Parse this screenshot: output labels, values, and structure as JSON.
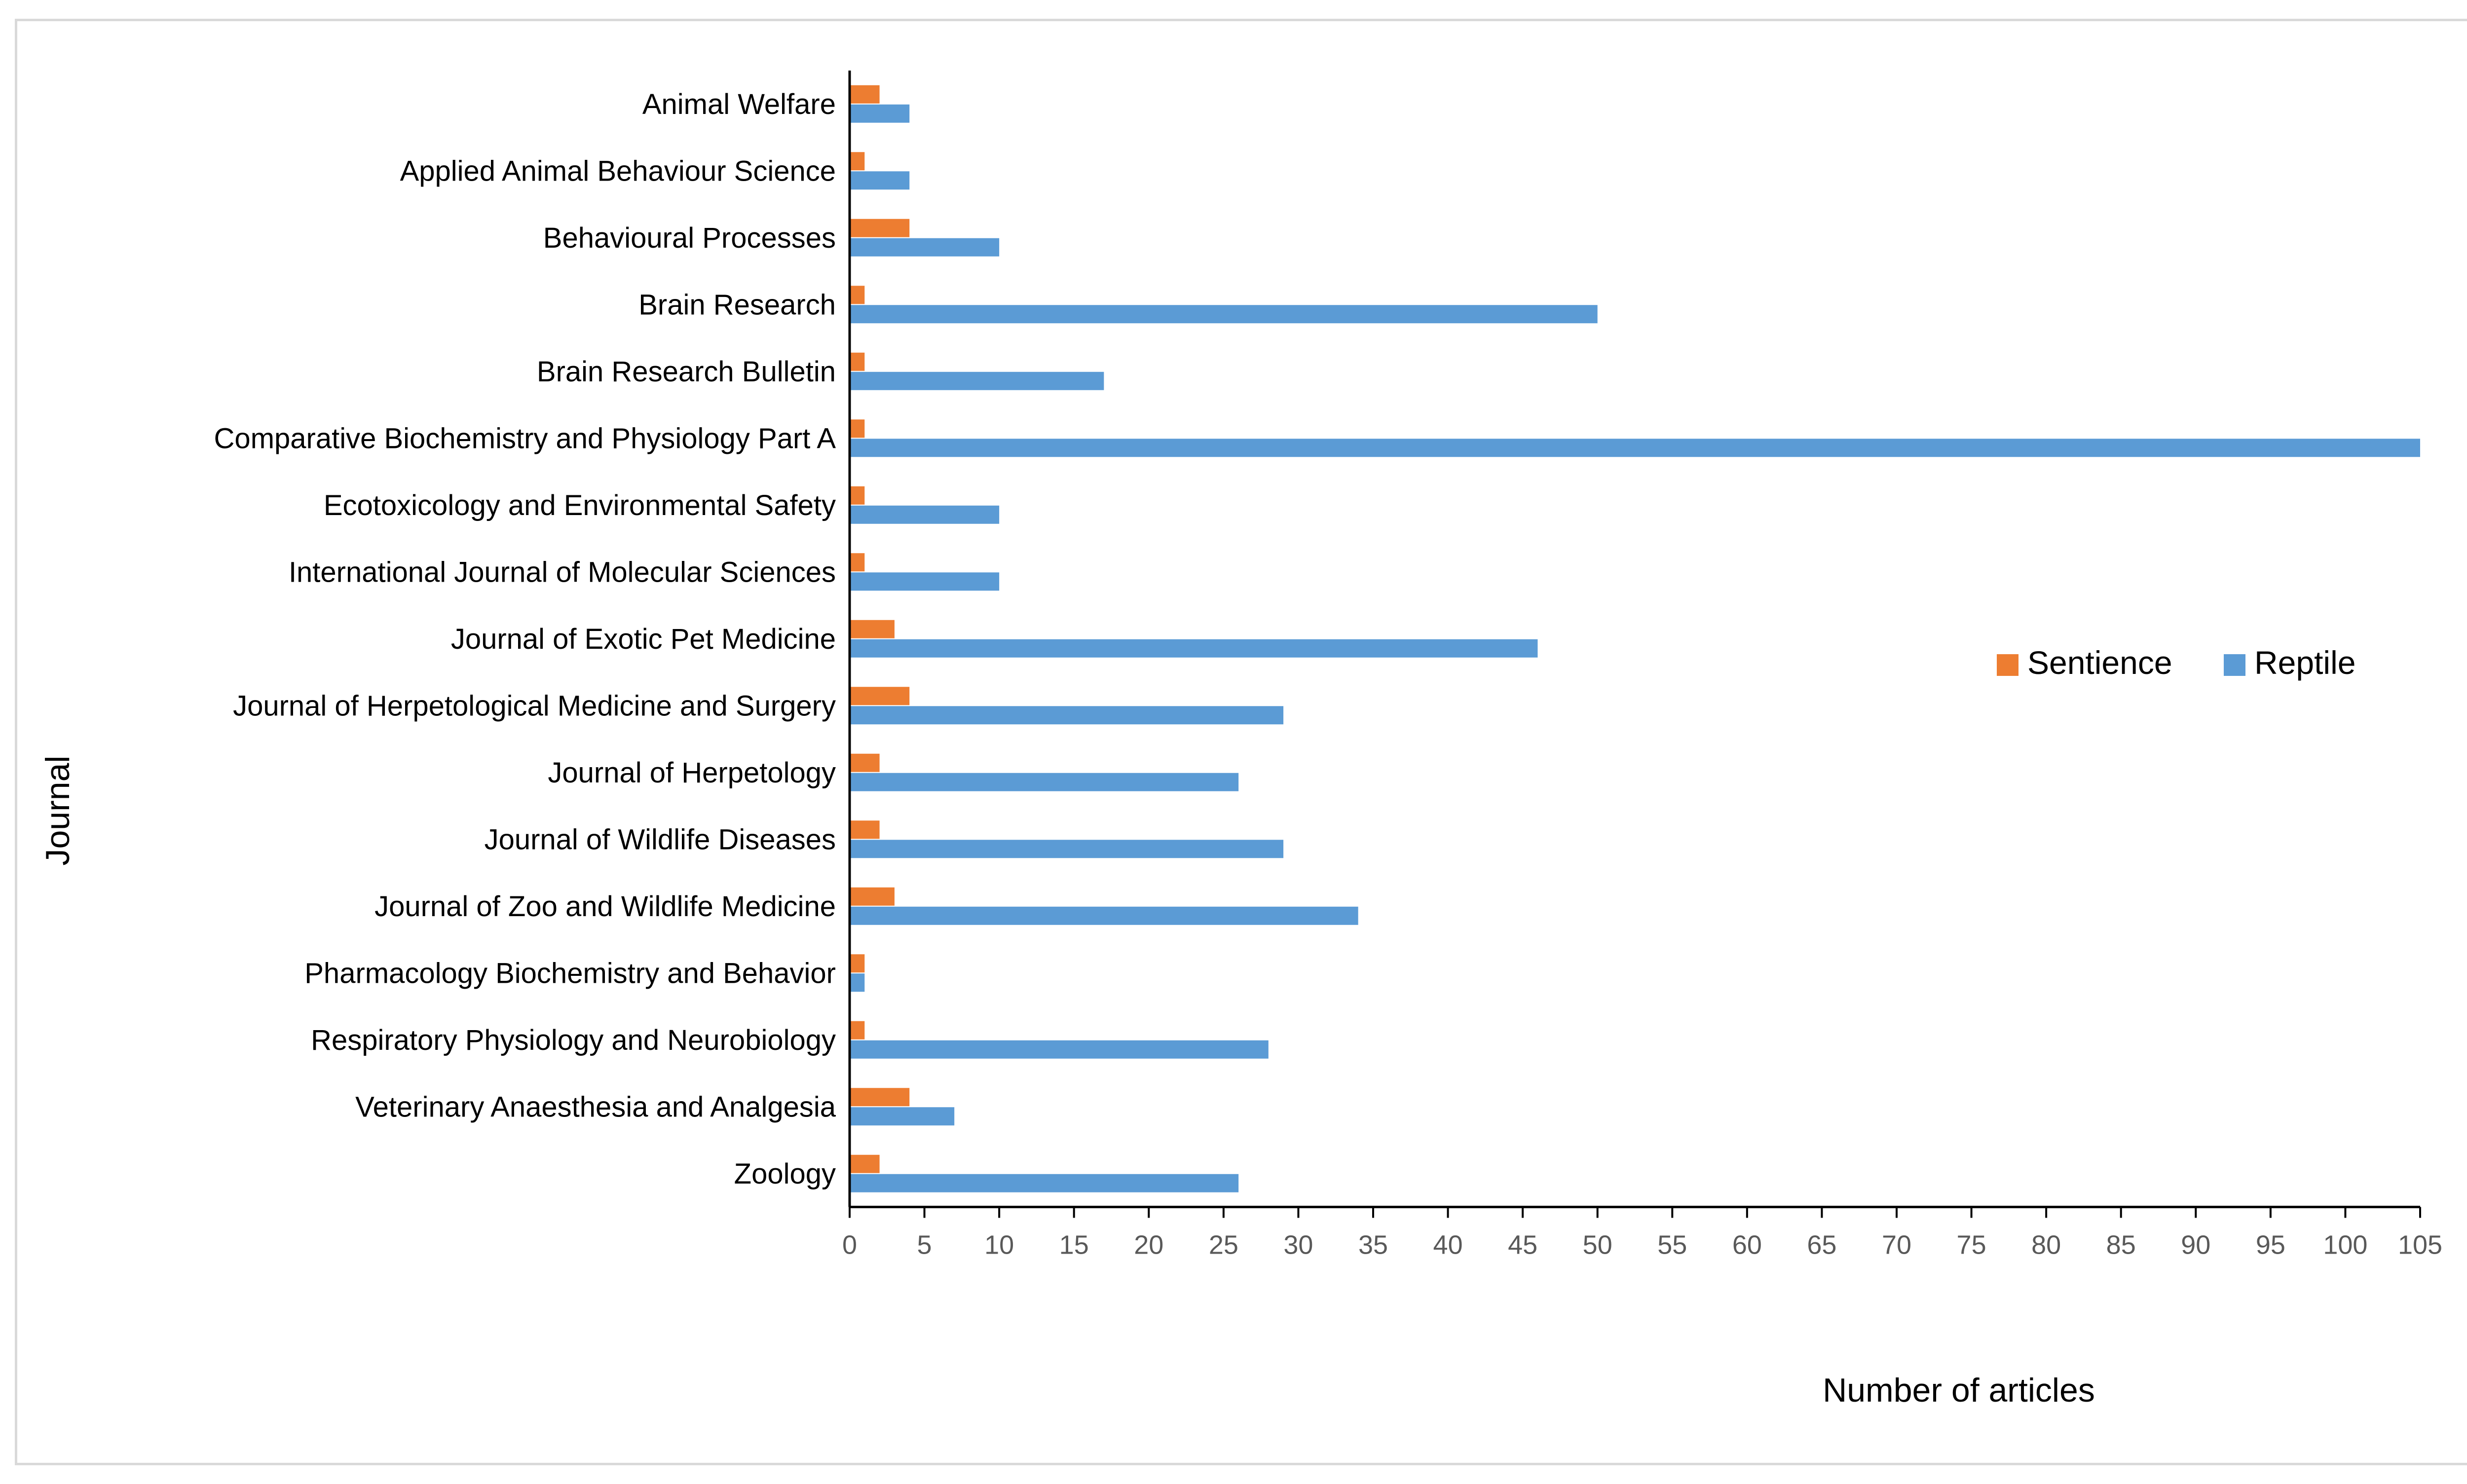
{
  "chart_data": {
    "type": "bar",
    "orientation": "horizontal",
    "categories": [
      "Animal Welfare",
      "Applied Animal Behaviour Science",
      "Behavioural Processes",
      "Brain Research",
      "Brain Research Bulletin",
      "Comparative Biochemistry and Physiology Part A",
      "Ecotoxicology and Environmental Safety",
      "International Journal of Molecular Sciences",
      "Journal of Exotic Pet Medicine",
      "Journal of Herpetological Medicine and Surgery",
      "Journal of Herpetology",
      "Journal of Wildlife Diseases",
      "Journal of Zoo and Wildlife Medicine",
      "Pharmacology Biochemistry and Behavior",
      "Respiratory Physiology and Neurobiology",
      "Veterinary Anaesthesia and Analgesia",
      "Zoology"
    ],
    "series": [
      {
        "name": "Sentience",
        "color": "#ED7D31",
        "values": [
          2,
          1,
          4,
          1,
          1,
          1,
          1,
          1,
          3,
          4,
          2,
          2,
          3,
          1,
          1,
          4,
          2
        ]
      },
      {
        "name": "Reptile",
        "color": "#5B9BD5",
        "values": [
          4,
          4,
          10,
          50,
          17,
          105,
          10,
          10,
          46,
          29,
          26,
          29,
          34,
          1,
          28,
          7,
          26
        ]
      }
    ],
    "xlim": [
      0,
      105
    ],
    "xticks": [
      0,
      5,
      10,
      15,
      20,
      25,
      30,
      35,
      40,
      45,
      50,
      55,
      60,
      65,
      70,
      75,
      80,
      85,
      90,
      95,
      100,
      105
    ],
    "xlabel": "Number of articles",
    "ylabel": "Journal",
    "title": "",
    "legend_position": "right",
    "grid": false
  }
}
